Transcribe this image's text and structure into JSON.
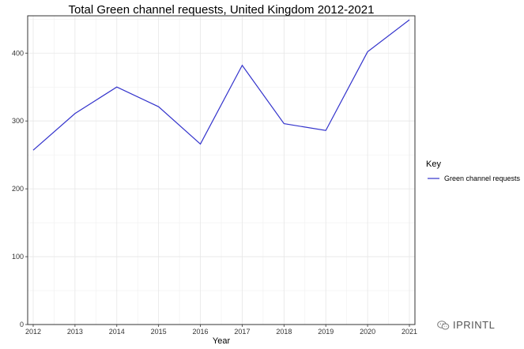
{
  "chart_data": {
    "type": "line",
    "title": "Total Green channel requests, United Kingdom 2012-2021",
    "xlabel": "Year",
    "ylabel": "",
    "x": [
      2012,
      2013,
      2014,
      2015,
      2016,
      2017,
      2018,
      2019,
      2020,
      2021
    ],
    "xlim": [
      2012,
      2021
    ],
    "ylim": [
      0,
      455
    ],
    "yticks": [
      0,
      100,
      200,
      300,
      400
    ],
    "series": [
      {
        "name": "Green channel requests",
        "color": "#3333cc",
        "values": [
          257,
          311,
          350,
          321,
          266,
          382,
          296,
          286,
          402,
          449
        ]
      }
    ],
    "grid": true,
    "legend": {
      "title": "Key",
      "placement": "right"
    }
  },
  "watermark": {
    "text": "IPRINTL",
    "icon": "wechat-icon"
  }
}
